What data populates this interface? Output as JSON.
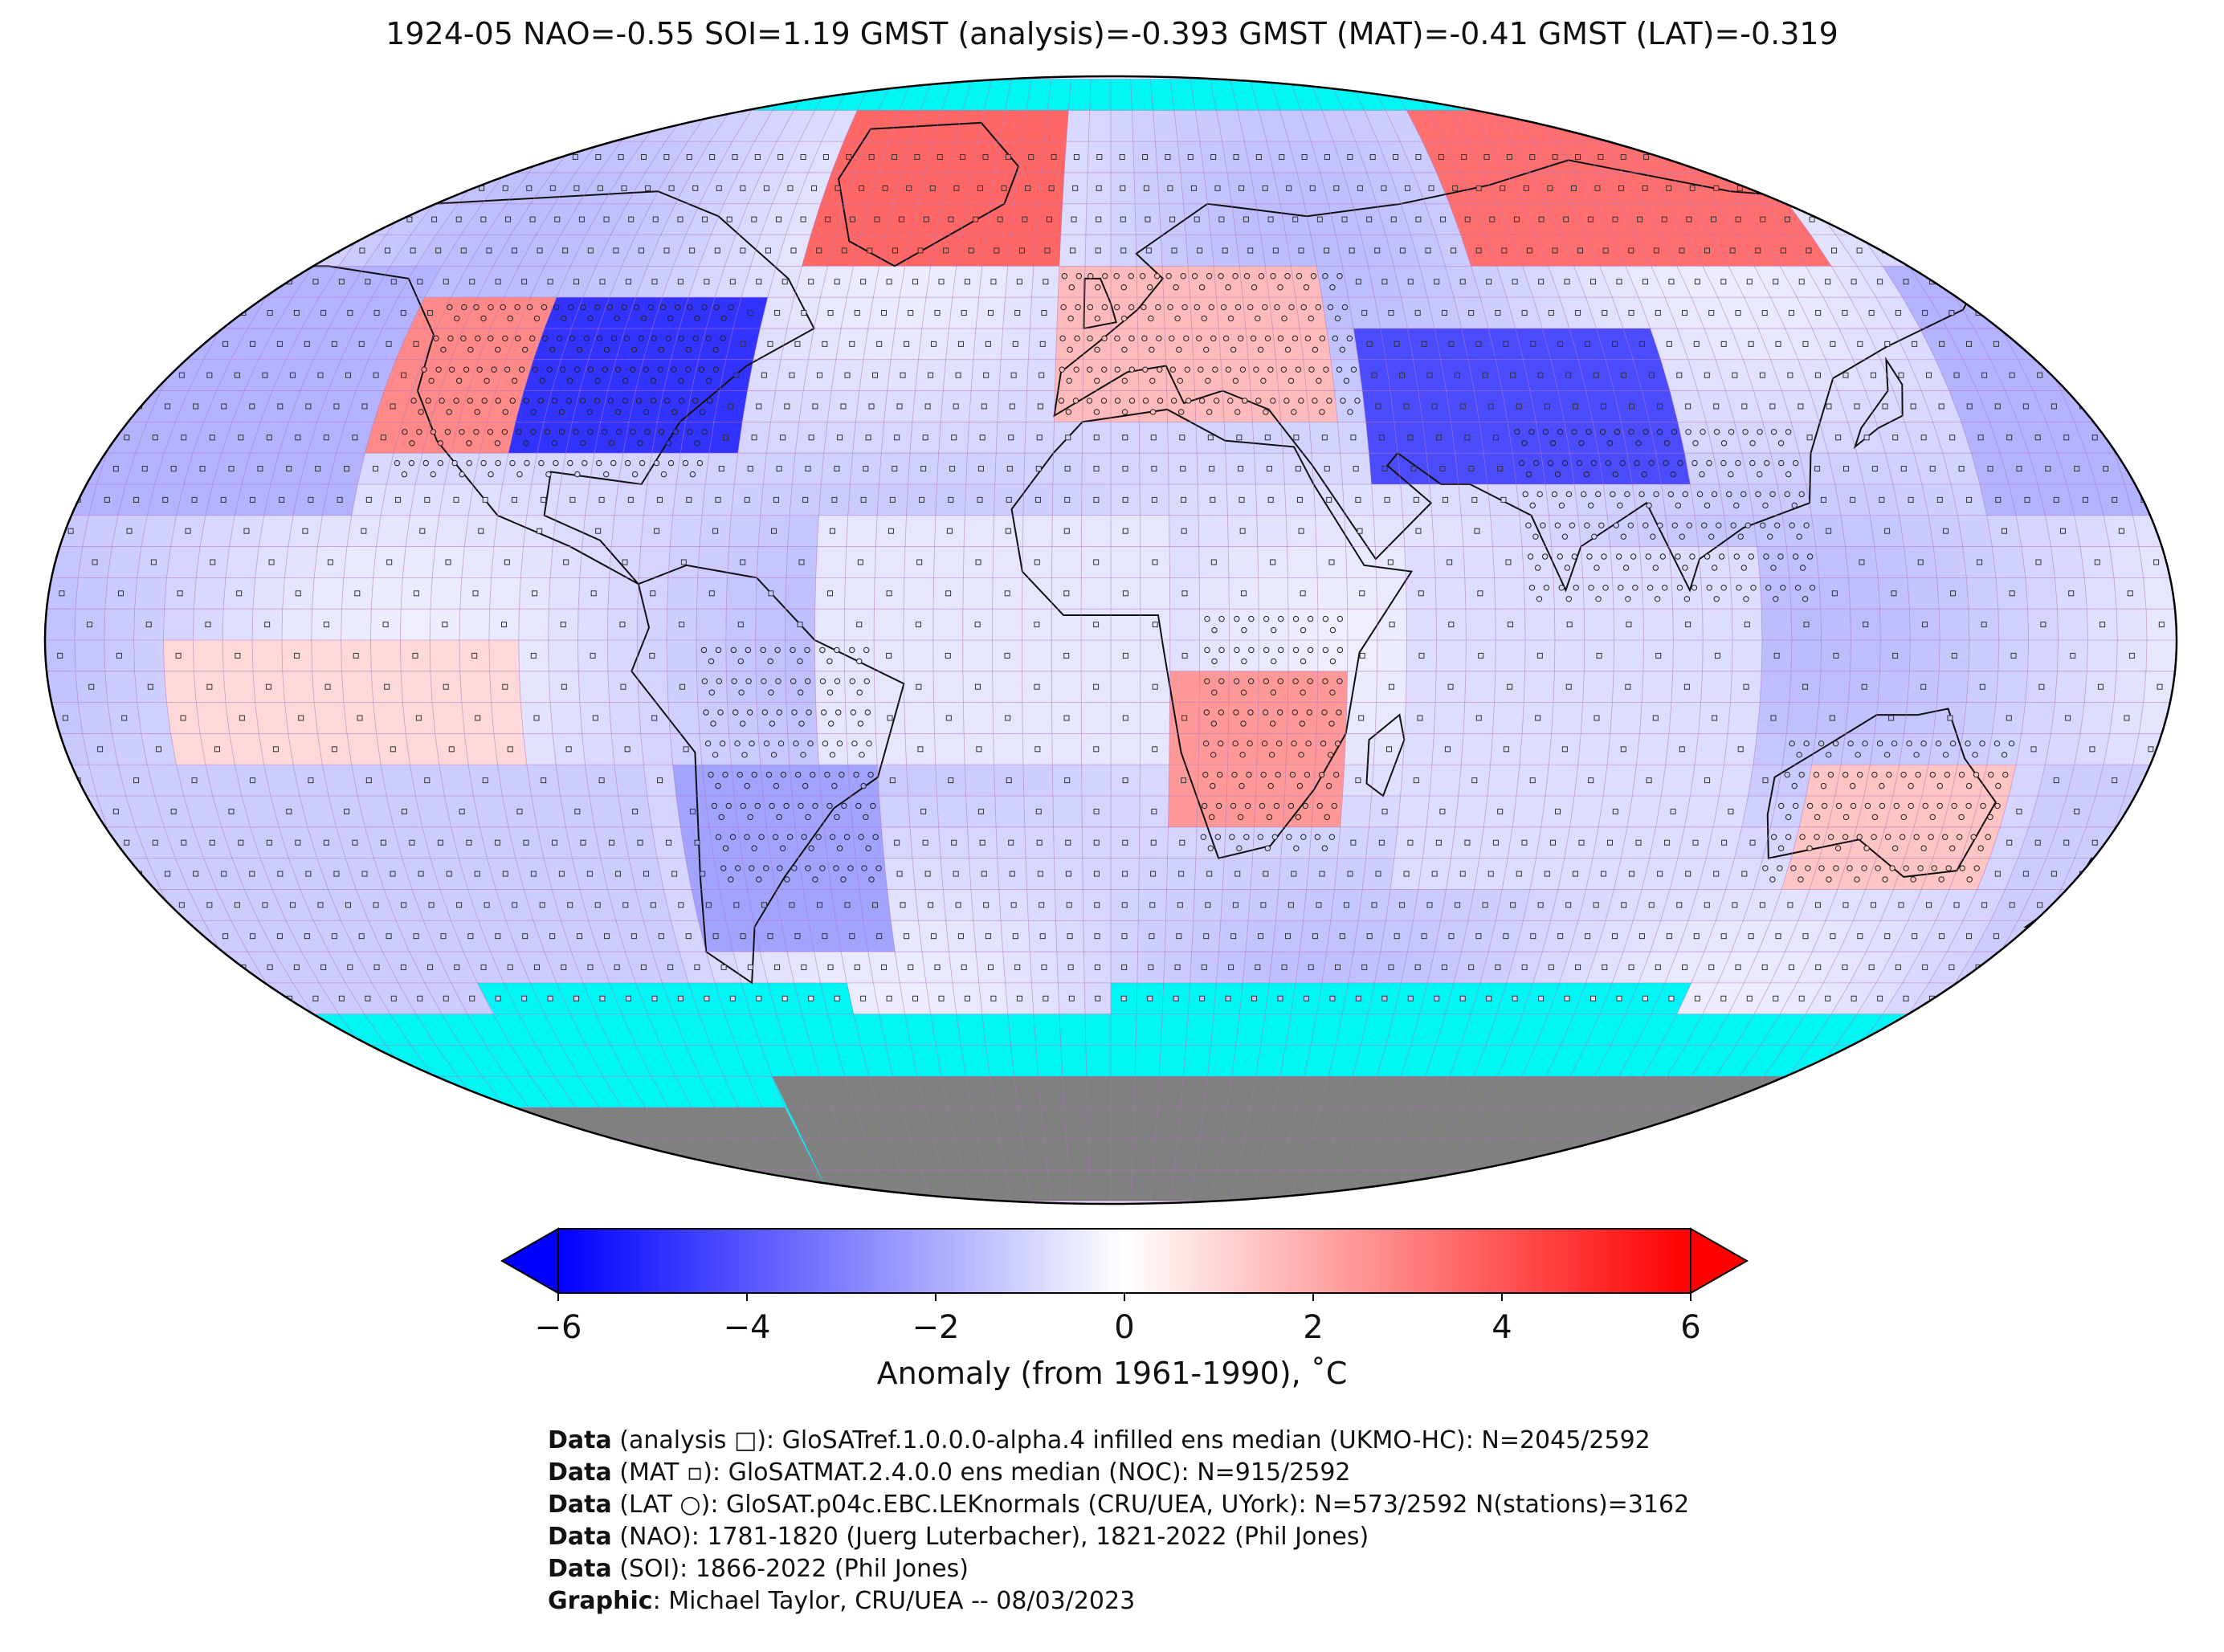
{
  "title": "1924-05 NAO=-0.55 SOI=1.19 GMST (analysis)=-0.393 GMST (MAT)=-0.41 GMST (LAT)=-0.319",
  "colorbar": {
    "label": "Anomaly (from 1961-1990), ˚C",
    "ticks": [
      "−6",
      "−4",
      "−2",
      "0",
      "2",
      "4",
      "6"
    ],
    "min": -6,
    "max": 6,
    "colors": {
      "low": "#0000ff",
      "mid": "#ffffff",
      "high": "#ff0000"
    }
  },
  "map": {
    "projection": "Robinson",
    "sea_ice_color": "#00f5f5",
    "land_ice_color": "#808080",
    "grid_line_color": "#b070c0",
    "markers": {
      "analysis": "square",
      "mat": "small-square",
      "lat": "circle"
    },
    "anomaly_regions": [
      {
        "name": "north-america-east",
        "value": -4.8
      },
      {
        "name": "western-north-america",
        "value": 2.8
      },
      {
        "name": "greenland",
        "value": 3.6
      },
      {
        "name": "northern-siberia",
        "value": 3.4
      },
      {
        "name": "central-asia",
        "value": -4.2
      },
      {
        "name": "europe",
        "value": 1.6
      },
      {
        "name": "southern-africa",
        "value": 2.4
      },
      {
        "name": "south-america-south",
        "value": -2.2
      },
      {
        "name": "australia-south",
        "value": 1.4
      },
      {
        "name": "north-pacific",
        "value": -1.8
      },
      {
        "name": "south-pacific",
        "value": -1.2
      },
      {
        "name": "tropical-atlantic",
        "value": -0.6
      },
      {
        "name": "indian-ocean",
        "value": -0.8
      },
      {
        "name": "eastern-pacific-south",
        "value": 0.9
      }
    ]
  },
  "credits": [
    {
      "bold": "Data",
      "text": " (analysis □): GloSATref.1.0.0.0-alpha.4 infilled ens median (UKMO-HC): N=2045/2592"
    },
    {
      "bold": "Data",
      "text": " (MAT ▫): GloSATMAT.2.4.0.0 ens median (NOC): N=915/2592"
    },
    {
      "bold": "Data",
      "text": " (LAT ○): GloSAT.p04c.EBC.LEKnormals (CRU/UEA, UYork): N=573/2592 N(stations)=3162"
    },
    {
      "bold": "Data",
      "text": " (NAO): 1781-1820 (Juerg Luterbacher), 1821-2022 (Phil Jones)"
    },
    {
      "bold": "Data",
      "text": " (SOI): 1866-2022 (Phil Jones)"
    },
    {
      "bold": "Graphic",
      "text": ": Michael Taylor, CRU/UEA -- 08/03/2023"
    }
  ]
}
